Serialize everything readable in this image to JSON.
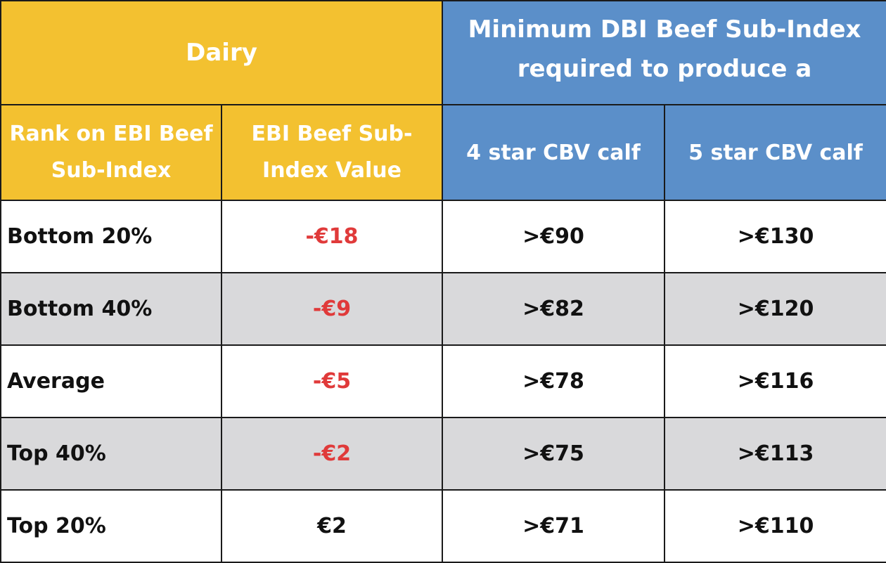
{
  "header": {
    "dairy_label": "Dairy",
    "dbi_line1": "Minimum DBI Beef  Sub-Index",
    "dbi_line2": "required to produce a"
  },
  "subheaders": {
    "rank_line1": "Rank on EBI Beef",
    "rank_line2": "Sub-Index",
    "value_line1": "EBI Beef Sub-",
    "value_line2": "Index Value",
    "four_star": "4 star CBV calf",
    "five_star": "5 star CBV calf"
  },
  "rows": [
    {
      "rank": "Bottom 20%",
      "value": "-€18",
      "four_star": ">€90",
      "five_star": ">€130"
    },
    {
      "rank": "Bottom 40%",
      "value": "-€9",
      "four_star": ">€82",
      "five_star": ">€120"
    },
    {
      "rank": "Average",
      "value": "-€5",
      "four_star": ">€78",
      "five_star": ">€116"
    },
    {
      "rank": "Top 40%",
      "value": "-€2",
      "four_star": ">€75",
      "five_star": ">€113"
    },
    {
      "rank": "Top 20%",
      "value": "€2",
      "four_star": ">€71",
      "five_star": ">€110"
    }
  ],
  "colors": {
    "dairy_header": "#f3c130",
    "dbi_header": "#5b8fc9",
    "negative_value": "#e03a3a",
    "alt_row": "#d9d9db"
  }
}
